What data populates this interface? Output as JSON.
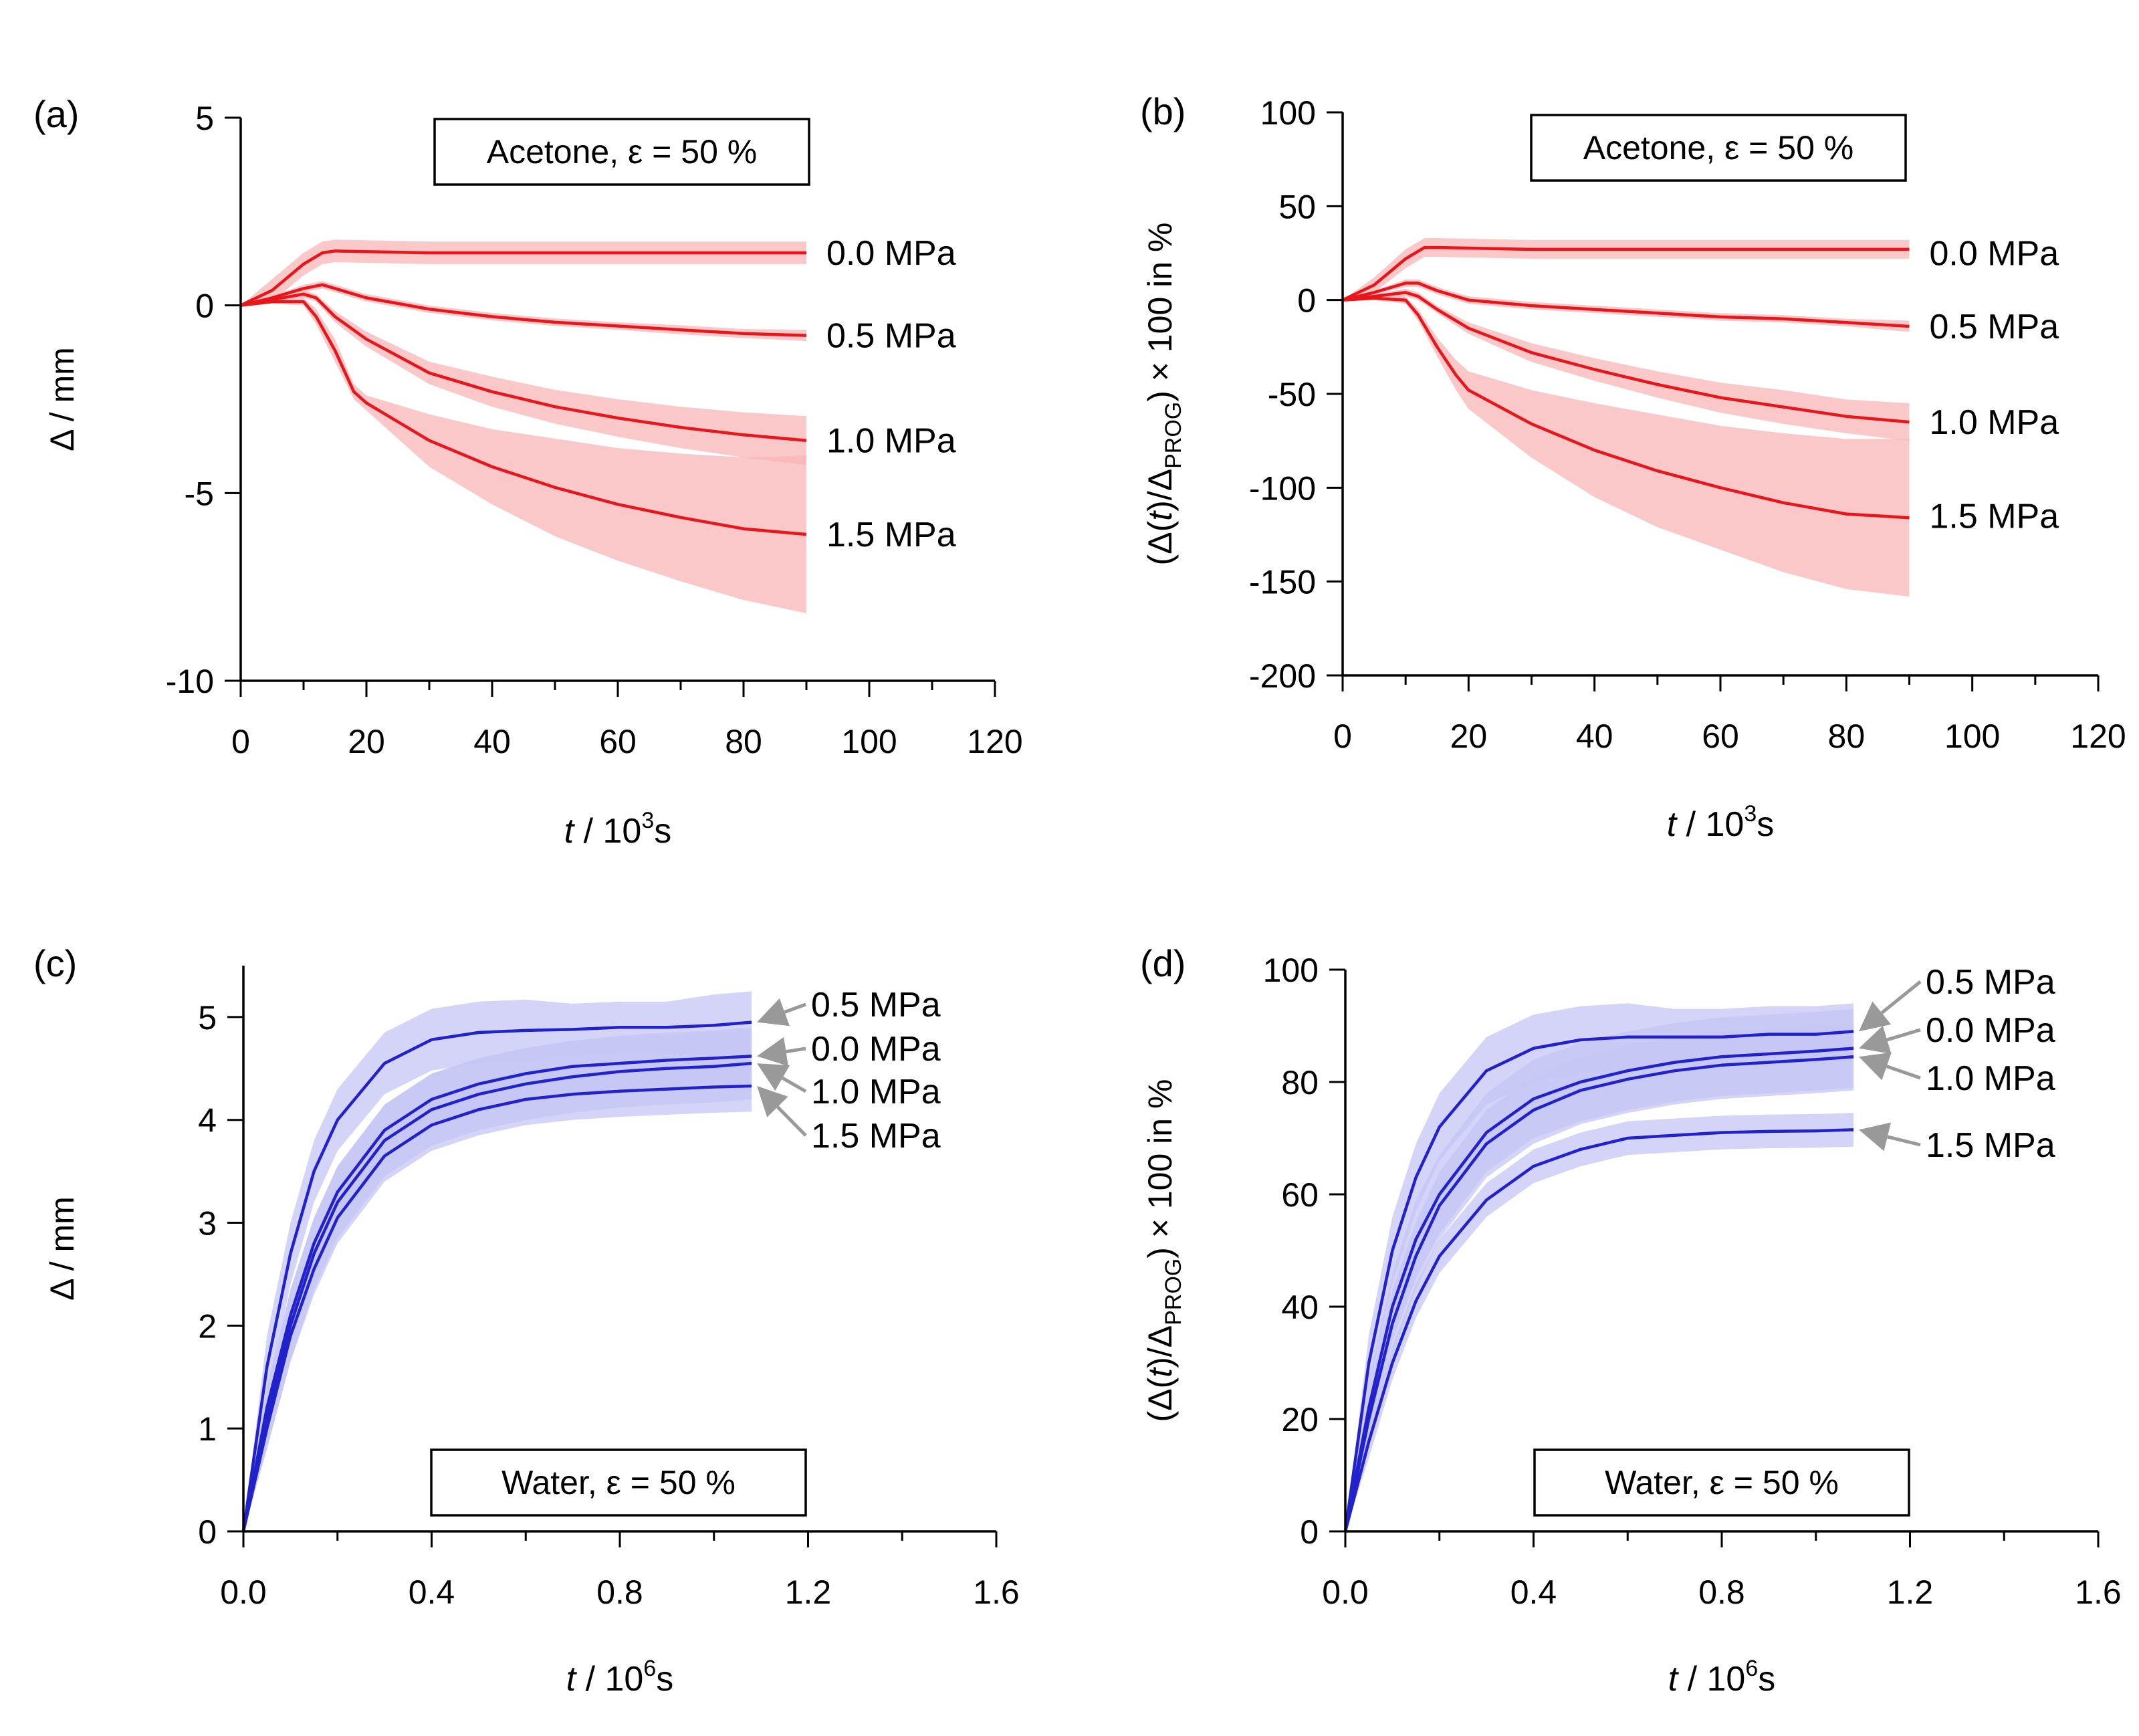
{
  "chart_data": [
    {
      "panel": "(a)",
      "type": "line",
      "title": "",
      "annotation": "Acetone, ε = 50 %",
      "xlabel": {
        "italic": "t",
        "text": " / 10",
        "sup": "3",
        "unit": "s"
      },
      "ylabel": "Δ / mm",
      "xlim": [
        0,
        120
      ],
      "ylim": [
        -10,
        5
      ],
      "xticks": [
        0,
        20,
        40,
        60,
        80,
        100,
        120
      ],
      "yticks": [
        5,
        0,
        -5,
        -10
      ],
      "series_color": "#e8161b",
      "band_color": "#f9b5b7",
      "series": [
        {
          "name": "0.0 MPa",
          "label_y": 1.4,
          "x": [
            0,
            5,
            10,
            13,
            15,
            30,
            50,
            70,
            90
          ],
          "y": [
            0,
            0.4,
            1.1,
            1.4,
            1.45,
            1.4,
            1.4,
            1.4,
            1.4
          ],
          "band": [
            0,
            0.3,
            0.3,
            0.3,
            0.3,
            0.3,
            0.3,
            0.3,
            0.3
          ]
        },
        {
          "name": "0.5 MPa",
          "label_y": -0.8,
          "x": [
            0,
            5,
            10,
            13,
            15,
            20,
            30,
            40,
            50,
            60,
            70,
            80,
            90
          ],
          "y": [
            0,
            0.2,
            0.45,
            0.55,
            0.45,
            0.2,
            -0.1,
            -0.3,
            -0.45,
            -0.55,
            -0.65,
            -0.75,
            -0.8
          ],
          "band": [
            0,
            0.05,
            0.1,
            0.1,
            0.1,
            0.1,
            0.1,
            0.1,
            0.1,
            0.1,
            0.12,
            0.12,
            0.15
          ]
        },
        {
          "name": "1.0 MPa",
          "label_y": -3.6,
          "x": [
            0,
            5,
            10,
            12,
            15,
            20,
            30,
            40,
            50,
            60,
            70,
            80,
            90
          ],
          "y": [
            0,
            0.15,
            0.3,
            0.2,
            -0.3,
            -0.9,
            -1.8,
            -2.3,
            -2.7,
            -3.0,
            -3.25,
            -3.45,
            -3.6
          ],
          "band": [
            0,
            0.05,
            0.1,
            0.1,
            0.15,
            0.2,
            0.3,
            0.4,
            0.45,
            0.5,
            0.55,
            0.6,
            0.65
          ]
        },
        {
          "name": "1.5 MPa",
          "label_y": -6.1,
          "x": [
            0,
            5,
            10,
            12,
            15,
            18,
            20,
            30,
            40,
            50,
            60,
            70,
            80,
            90
          ],
          "y": [
            0,
            0.1,
            0.1,
            -0.3,
            -1.2,
            -2.3,
            -2.6,
            -3.6,
            -4.3,
            -4.85,
            -5.3,
            -5.65,
            -5.95,
            -6.1
          ],
          "band": [
            0,
            0.05,
            0.1,
            0.2,
            0.3,
            0.2,
            0.2,
            0.7,
            1.0,
            1.3,
            1.5,
            1.7,
            1.9,
            2.1
          ]
        }
      ]
    },
    {
      "panel": "(b)",
      "type": "line",
      "title": "",
      "annotation": "Acetone, ε = 50 %",
      "xlabel": {
        "italic": "t",
        "text": " / 10",
        "sup": "3",
        "unit": "s"
      },
      "ylabel": {
        "pre": "(Δ(",
        "italic": "t",
        "mid": ")/Δ",
        "sub": "PROG",
        "post": ") × 100 in %"
      },
      "xlim": [
        0,
        120
      ],
      "ylim": [
        -200,
        100
      ],
      "xticks": [
        0,
        20,
        40,
        60,
        80,
        100,
        120
      ],
      "yticks": [
        100,
        50,
        0,
        -50,
        -100,
        -150,
        -200
      ],
      "series_color": "#e8161b",
      "band_color": "#f9b5b7",
      "series": [
        {
          "name": "0.0 MPa",
          "label_y": 25,
          "x": [
            0,
            5,
            10,
            13,
            15,
            30,
            50,
            70,
            90
          ],
          "y": [
            0,
            8,
            22,
            28,
            28,
            27,
            27,
            27,
            27
          ],
          "band": [
            0,
            4,
            5,
            5,
            5,
            5,
            5,
            5,
            5
          ]
        },
        {
          "name": "0.5 MPa",
          "label_y": -14,
          "x": [
            0,
            5,
            10,
            12,
            15,
            20,
            30,
            40,
            50,
            60,
            70,
            80,
            90
          ],
          "y": [
            0,
            4,
            9,
            9,
            5,
            0,
            -3,
            -5,
            -7,
            -9,
            -10,
            -12,
            -14
          ],
          "band": [
            0,
            1,
            2,
            2,
            2,
            2,
            2,
            2,
            2,
            2,
            2,
            2,
            3
          ]
        },
        {
          "name": "1.0 MPa",
          "label_y": -65,
          "x": [
            0,
            5,
            10,
            12,
            15,
            20,
            30,
            40,
            50,
            60,
            70,
            80,
            90
          ],
          "y": [
            0,
            2,
            4,
            2,
            -5,
            -15,
            -28,
            -37,
            -45,
            -52,
            -57,
            -62,
            -65
          ],
          "band": [
            0,
            1,
            2,
            2,
            2,
            3,
            5,
            6,
            7,
            8,
            9,
            9,
            10
          ]
        },
        {
          "name": "1.5 MPa",
          "label_y": -115,
          "x": [
            0,
            5,
            10,
            12,
            15,
            18,
            20,
            30,
            40,
            50,
            60,
            70,
            80,
            90
          ],
          "y": [
            0,
            1,
            0,
            -8,
            -25,
            -40,
            -48,
            -66,
            -80,
            -91,
            -100,
            -108,
            -114,
            -116
          ],
          "band": [
            0,
            1,
            2,
            3,
            5,
            8,
            10,
            18,
            25,
            30,
            33,
            37,
            40,
            42
          ]
        }
      ]
    },
    {
      "panel": "(c)",
      "type": "line",
      "title": "",
      "annotation": "Water, ε = 50 %",
      "xlabel": {
        "italic": "t",
        "text": " / 10",
        "sup": "6",
        "unit": "s"
      },
      "ylabel": "Δ / mm",
      "xlim": [
        0,
        1.6
      ],
      "ylim": [
        0,
        5.5
      ],
      "xticks": [
        0.0,
        0.4,
        0.8,
        1.2,
        1.6
      ],
      "xtick_labels": [
        "0.0",
        "0.4",
        "0.8",
        "1.2",
        "1.6"
      ],
      "yticks": [
        0,
        1,
        2,
        3,
        4,
        5
      ],
      "series_color": "#2222cc",
      "band_color": "#c5c5f5",
      "series": [
        {
          "name": "0.5 MPa",
          "label_y": 5.0,
          "x": [
            0,
            0.05,
            0.1,
            0.15,
            0.2,
            0.3,
            0.4,
            0.5,
            0.6,
            0.7,
            0.8,
            0.9,
            1.0,
            1.08
          ],
          "y": [
            0,
            1.6,
            2.7,
            3.5,
            4.0,
            4.55,
            4.78,
            4.85,
            4.87,
            4.88,
            4.9,
            4.9,
            4.92,
            4.95
          ],
          "band": [
            0,
            0.3,
            0.3,
            0.3,
            0.3,
            0.3,
            0.3,
            0.3,
            0.3,
            0.25,
            0.25,
            0.25,
            0.3,
            0.3
          ]
        },
        {
          "name": "0.0 MPa",
          "label_y": 4.62,
          "x": [
            0,
            0.05,
            0.1,
            0.15,
            0.2,
            0.3,
            0.4,
            0.5,
            0.6,
            0.7,
            0.8,
            0.9,
            1.0,
            1.08
          ],
          "y": [
            0,
            1.2,
            2.1,
            2.8,
            3.3,
            3.9,
            4.2,
            4.35,
            4.45,
            4.52,
            4.55,
            4.58,
            4.6,
            4.62
          ],
          "band": [
            0,
            0.2,
            0.25,
            0.25,
            0.25,
            0.25,
            0.25,
            0.25,
            0.25,
            0.25,
            0.25,
            0.25,
            0.25,
            0.25
          ]
        },
        {
          "name": "1.0 MPa",
          "label_y": 4.3,
          "x": [
            0,
            0.05,
            0.1,
            0.15,
            0.2,
            0.3,
            0.4,
            0.5,
            0.6,
            0.7,
            0.8,
            0.9,
            1.0,
            1.08
          ],
          "y": [
            0,
            1.1,
            2.0,
            2.7,
            3.2,
            3.8,
            4.1,
            4.25,
            4.35,
            4.42,
            4.47,
            4.5,
            4.52,
            4.55
          ],
          "band": [
            0,
            0.3,
            0.35,
            0.35,
            0.35,
            0.35,
            0.35,
            0.35,
            0.35,
            0.35,
            0.35,
            0.35,
            0.35,
            0.35
          ]
        },
        {
          "name": "1.5 MPa",
          "label_y": 3.9,
          "x": [
            0,
            0.05,
            0.1,
            0.15,
            0.2,
            0.3,
            0.4,
            0.5,
            0.6,
            0.7,
            0.8,
            0.9,
            1.0,
            1.08
          ],
          "y": [
            0,
            1.0,
            1.9,
            2.55,
            3.05,
            3.65,
            3.95,
            4.1,
            4.2,
            4.25,
            4.28,
            4.3,
            4.32,
            4.33
          ],
          "band": [
            0,
            0.2,
            0.25,
            0.25,
            0.25,
            0.25,
            0.25,
            0.25,
            0.25,
            0.25,
            0.25,
            0.25,
            0.25,
            0.25
          ]
        }
      ]
    },
    {
      "panel": "(d)",
      "type": "line",
      "title": "",
      "annotation": "Water, ε = 50 %",
      "xlabel": {
        "italic": "t",
        "text": " / 10",
        "sup": "6",
        "unit": "s"
      },
      "ylabel": {
        "pre": "(Δ(",
        "italic": "t",
        "mid": ")/Δ",
        "sub": "PROG",
        "post": ") × 100 in %"
      },
      "xlim": [
        0,
        1.6
      ],
      "ylim": [
        0,
        100
      ],
      "xticks": [
        0.0,
        0.4,
        0.8,
        1.2,
        1.6
      ],
      "xtick_labels": [
        "0.0",
        "0.4",
        "0.8",
        "1.2",
        "1.6"
      ],
      "yticks": [
        0,
        20,
        40,
        60,
        80,
        100
      ],
      "series_color": "#2222cc",
      "band_color": "#c5c5f5",
      "series": [
        {
          "name": "0.5 MPa",
          "label_y": 94,
          "x": [
            0,
            0.05,
            0.1,
            0.15,
            0.2,
            0.3,
            0.4,
            0.5,
            0.6,
            0.7,
            0.8,
            0.9,
            1.0,
            1.08
          ],
          "y": [
            0,
            30,
            50,
            63,
            72,
            82,
            86,
            87.5,
            88,
            88,
            88,
            88.5,
            88.5,
            89
          ],
          "band": [
            0,
            5,
            6,
            6,
            6,
            6,
            6,
            6,
            6,
            5,
            5,
            5,
            5,
            5
          ]
        },
        {
          "name": "0.0 MPa",
          "label_y": 85.5,
          "x": [
            0,
            0.05,
            0.1,
            0.15,
            0.2,
            0.3,
            0.4,
            0.5,
            0.6,
            0.7,
            0.8,
            0.9,
            1.0,
            1.08
          ],
          "y": [
            0,
            22,
            40,
            52,
            60,
            71,
            77,
            80,
            82,
            83.5,
            84.5,
            85,
            85.5,
            86
          ],
          "band": [
            0,
            5,
            6,
            7,
            7,
            7,
            7,
            7,
            7,
            7,
            7,
            7,
            7,
            7
          ]
        },
        {
          "name": "1.0 MPa",
          "label_y": 77,
          "x": [
            0,
            0.05,
            0.1,
            0.15,
            0.2,
            0.3,
            0.4,
            0.5,
            0.6,
            0.7,
            0.8,
            0.9,
            1.0,
            1.08
          ],
          "y": [
            0,
            20,
            37,
            49,
            58,
            69,
            75,
            78.5,
            80.5,
            82,
            83,
            83.5,
            84,
            84.5
          ],
          "band": [
            0,
            5,
            6,
            6,
            6,
            6,
            6,
            6,
            6,
            6,
            6,
            6,
            6,
            6
          ]
        },
        {
          "name": "1.5 MPa",
          "label_y": 67,
          "x": [
            0,
            0.05,
            0.1,
            0.15,
            0.2,
            0.3,
            0.4,
            0.5,
            0.6,
            0.7,
            0.8,
            0.9,
            1.0,
            1.08
          ],
          "y": [
            0,
            16,
            30,
            41,
            49,
            59,
            65,
            68,
            70,
            70.5,
            71,
            71.2,
            71.3,
            71.5
          ],
          "band": [
            0,
            3,
            3,
            3,
            3,
            3,
            3,
            3,
            3,
            3,
            3,
            3,
            3,
            3
          ]
        }
      ]
    }
  ]
}
